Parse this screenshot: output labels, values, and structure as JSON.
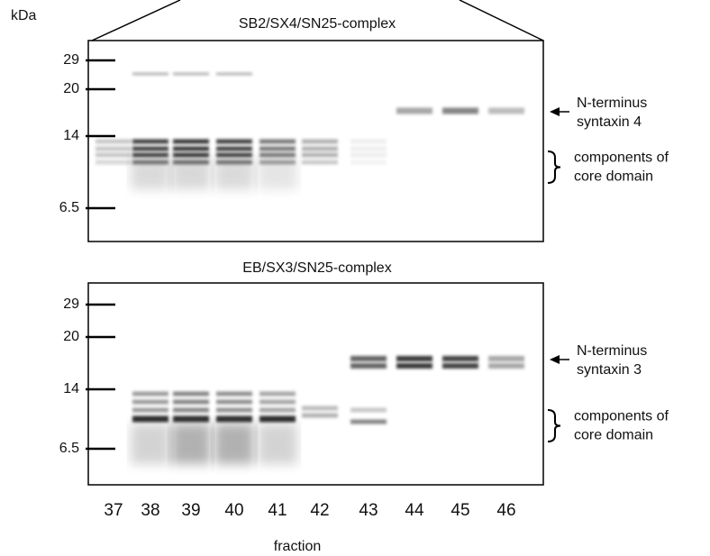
{
  "figure": {
    "kda_label": "kDa",
    "panels": [
      {
        "title": "SB2/SX4/SN25-complex",
        "markers": [
          "29",
          "20",
          "14",
          "6.5"
        ],
        "arrow_label": [
          "N-terminus",
          "syntaxin 4"
        ],
        "brace_label": [
          "components of",
          "core domain"
        ]
      },
      {
        "title": "EB/SX3/SN25-complex",
        "markers": [
          "29",
          "20",
          "14",
          "6.5"
        ],
        "arrow_label": [
          "N-terminus",
          "syntaxin 3"
        ],
        "brace_label": [
          "components of",
          "core domain"
        ]
      }
    ],
    "fractions": [
      "37",
      "38",
      "39",
      "40",
      "41",
      "42",
      "43",
      "44",
      "45",
      "46"
    ],
    "x_label": "fraction"
  }
}
